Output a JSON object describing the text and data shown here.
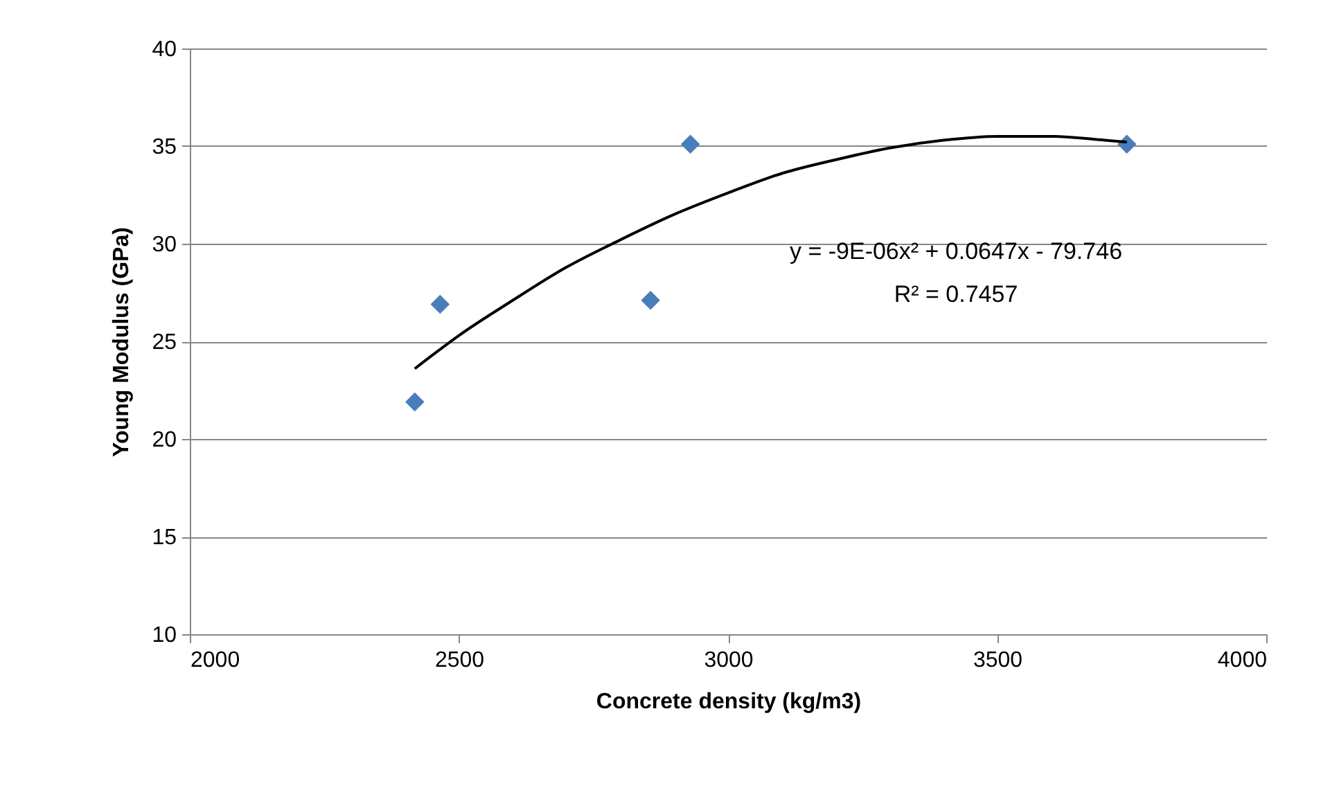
{
  "chart_data": {
    "type": "scatter",
    "xlabel": "Concrete density (kg/m3)",
    "ylabel": "Young Modulus (GPa)",
    "xlim": [
      2000,
      4000
    ],
    "xticks": [
      2000,
      2500,
      3000,
      3500,
      4000
    ],
    "ylim": [
      10,
      40
    ],
    "yticks": [
      10,
      15,
      20,
      25,
      30,
      35,
      40
    ],
    "grid": "y",
    "marker": "diamond",
    "series": [
      {
        "color": "#4a7ebb",
        "x": [
          2418,
          2465,
          2856,
          2930,
          3741
        ],
        "values": [
          21.9,
          26.9,
          27.1,
          35.1,
          35.1
        ]
      },
      {
        "type": "line",
        "color": "#000000",
        "marker": "none",
        "x": [
          2418,
          2500,
          2600,
          2700,
          2800,
          2900,
          3000,
          3100,
          3200,
          3300,
          3400,
          3500,
          3600,
          3700,
          3741
        ],
        "values": [
          23.6,
          25.3,
          27.1,
          28.8,
          30.2,
          31.5,
          32.6,
          33.6,
          34.3,
          34.9,
          35.3,
          35.5,
          35.5,
          35.3,
          35.2
        ]
      }
    ],
    "annotations": [
      "y = -9E-06x² + 0.0647x - 79.746",
      "R² = 0.7457"
    ]
  }
}
